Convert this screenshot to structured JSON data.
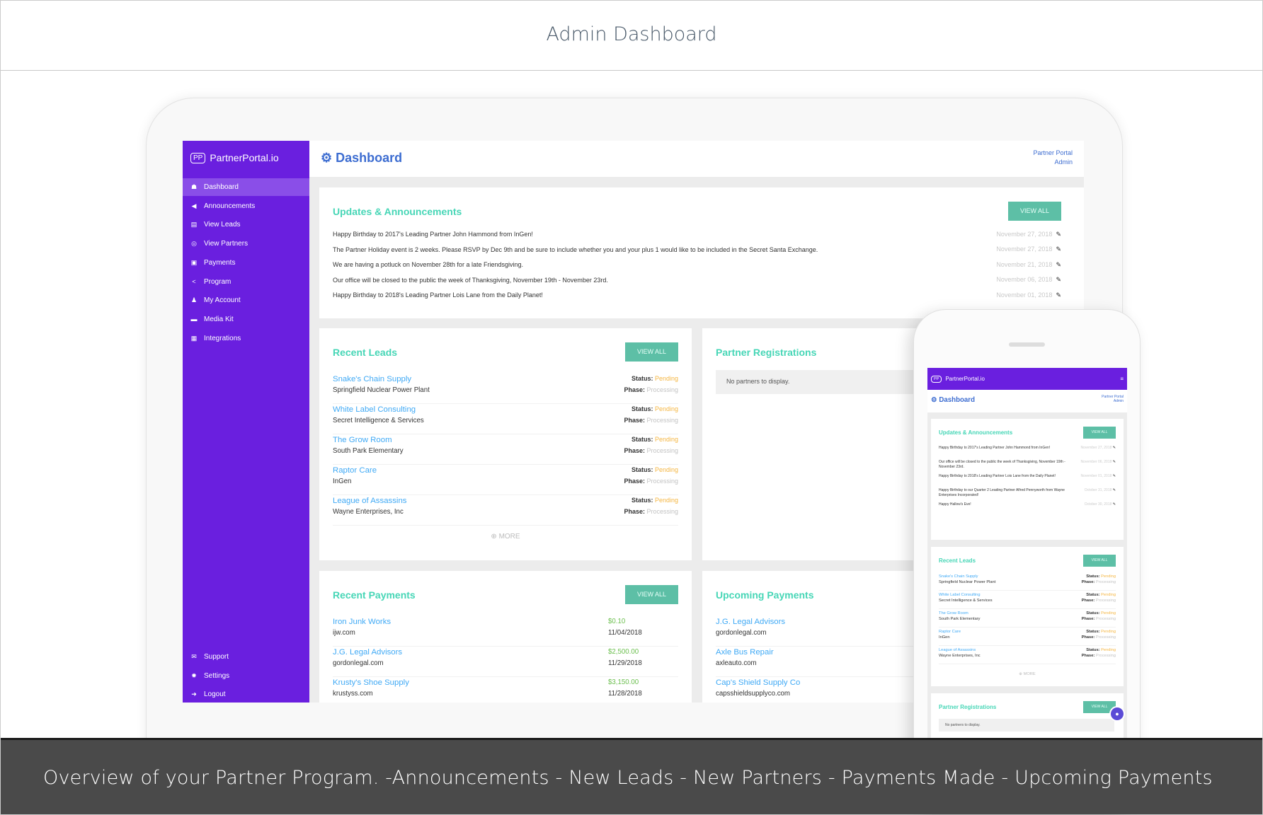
{
  "page_title": "Admin Dashboard",
  "caption": "Overview of your Partner Program. -Announcements - New Leads - New Partners - Payments Made - Upcoming Payments",
  "colors": {
    "sidebar": "#6a1fdf",
    "accent_teal": "#46d6b6",
    "button": "#5dbfa6",
    "link": "#3fa9f5",
    "pending": "#f5b642",
    "amount": "#6cbf4f"
  },
  "app": {
    "logo_mark": "PP",
    "logo_text": "PartnerPortal.io",
    "page": "Dashboard",
    "account_line1": "Partner Portal",
    "account_line2": "Admin",
    "view_all": "VIEW ALL",
    "more": "MORE",
    "status_label": "Status:",
    "phase_label": "Phase:"
  },
  "sidebar": {
    "items": [
      {
        "label": "Dashboard",
        "icon": "dashboard-icon",
        "glyph": "☗"
      },
      {
        "label": "Announcements",
        "icon": "bullhorn-icon",
        "glyph": "◀"
      },
      {
        "label": "View Leads",
        "icon": "table-icon",
        "glyph": "▤"
      },
      {
        "label": "View Partners",
        "icon": "handshake-icon",
        "glyph": "◎"
      },
      {
        "label": "Payments",
        "icon": "money-icon",
        "glyph": "▣"
      },
      {
        "label": "Program",
        "icon": "share-icon",
        "glyph": "<"
      },
      {
        "label": "My Account",
        "icon": "user-icon",
        "glyph": "♟"
      },
      {
        "label": "Media Kit",
        "icon": "folder-icon",
        "glyph": "▬"
      },
      {
        "label": "Integrations",
        "icon": "grid-icon",
        "glyph": "▦"
      }
    ],
    "bottom": [
      {
        "label": "Support",
        "icon": "envelope-icon",
        "glyph": "✉"
      },
      {
        "label": "Settings",
        "icon": "gear-icon",
        "glyph": "✹"
      },
      {
        "label": "Logout",
        "icon": "logout-icon",
        "glyph": "➜"
      }
    ]
  },
  "announcements": {
    "title": "Updates & Announcements",
    "items": [
      {
        "text": "Happy Birthday to 2017's Leading Partner John Hammond from InGen!",
        "date": "November 27, 2018"
      },
      {
        "text": "The Partner Holiday event is 2 weeks. Please RSVP by Dec 9th and be sure to include whether you and your plus 1 would like to be included in the Secret Santa Exchange.",
        "date": "November 27, 2018"
      },
      {
        "text": "We are having a potluck on November 28th for a late Friendsgiving.",
        "date": "November 21, 2018"
      },
      {
        "text": "Our office will be closed to the public the week of Thanksgiving, November 19th - November 23rd.",
        "date": "November 06, 2018"
      },
      {
        "text": "Happy Birthday to 2018's Leading Partner Lois Lane from the Daily Planet!",
        "date": "November 01, 2018"
      }
    ]
  },
  "leads": {
    "title": "Recent Leads",
    "items": [
      {
        "name": "Snake's Chain Supply",
        "company": "Springfield Nuclear Power Plant",
        "status": "Pending",
        "phase": "Processing"
      },
      {
        "name": "White Label Consulting",
        "company": "Secret Intelligence & Services",
        "status": "Pending",
        "phase": "Processing"
      },
      {
        "name": "The Grow Room",
        "company": "South Park Elementary",
        "status": "Pending",
        "phase": "Processing"
      },
      {
        "name": "Raptor Care",
        "company": "InGen",
        "status": "Pending",
        "phase": "Processing"
      },
      {
        "name": "League of Assassins",
        "company": "Wayne Enterprises, Inc",
        "status": "Pending",
        "phase": "Processing"
      }
    ]
  },
  "registrations": {
    "title": "Partner Registrations",
    "empty": "No partners to display."
  },
  "payments": {
    "title": "Recent Payments",
    "items": [
      {
        "name": "Iron Junk Works",
        "site": "ijw.com",
        "amount": "$0.10",
        "date": "11/04/2018"
      },
      {
        "name": "J.G. Legal Advisors",
        "site": "gordonlegal.com",
        "amount": "$2,500.00",
        "date": "11/29/2018"
      },
      {
        "name": "Krusty's Shoe Supply",
        "site": "krustyss.com",
        "amount": "$3,150.00",
        "date": "11/28/2018"
      }
    ]
  },
  "upcoming": {
    "title": "Upcoming Payments",
    "items": [
      {
        "name": "J.G. Legal Advisors",
        "site": "gordonlegal.com"
      },
      {
        "name": "Axle Bus Repair",
        "site": "axleauto.com"
      },
      {
        "name": "Cap's Shield Supply Co",
        "site": "capsshieldsupplyco.com"
      }
    ]
  },
  "mobile": {
    "announcements": [
      {
        "text": "Happy Birthday to 2017's Leading Partner John Hammond from InGen!",
        "date": "November 27, 2018"
      },
      {
        "text": "Our office will be closed to the public the week of Thanksgiving, November 19th - November 23rd.",
        "date": "November 06, 2018"
      },
      {
        "text": "Happy Birthday to 2018's Leading Partner Lois Lane from the Daily Planet!",
        "date": "November 01, 2018"
      },
      {
        "text": "Happy Birthday to our Quarter 2 Leading Partner Alfred Pennyworth from Wayne Enterprises Incorporated!",
        "date": "October 31, 2018"
      },
      {
        "text": "Happy Hallow's Eve!",
        "date": "October 30, 2018"
      }
    ]
  }
}
